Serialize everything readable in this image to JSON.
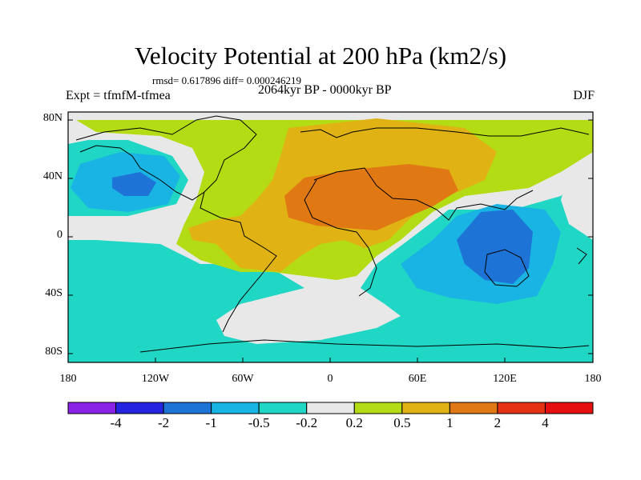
{
  "title": "Velocity Potential at 200 hPa (km2/s)",
  "stats": "rmsd= 0.617896  diff= 0.000246219",
  "experiment": "Expt = tfmfM-tfmea",
  "period": "2064kyr BP - 0000kyr BP",
  "season": "DJF",
  "lat_labels": [
    "80N",
    "40N",
    "0",
    "40S",
    "80S"
  ],
  "lon_labels": [
    "180",
    "120W",
    "60W",
    "0",
    "60E",
    "120E",
    "180"
  ],
  "colorbar": {
    "labels": [
      "-4",
      "-2",
      "-1",
      "-0.5",
      "-0.2",
      "0.2",
      "0.5",
      "1",
      "2",
      "4"
    ],
    "colors": [
      "#8a23e6",
      "#2323e0",
      "#1e73d6",
      "#19b4e3",
      "#20d6c5",
      "#e8e8e8",
      "#b4dc14",
      "#e0b214",
      "#e07814",
      "#e63214",
      "#e60f0f"
    ]
  },
  "colors": {
    "background_field": "#20d6c5",
    "neutral": "#e8e8e8",
    "weak_positive": "#b4dc14",
    "moderate_positive": "#e0b214",
    "strong_positive": "#e07814",
    "weak_negative": "#19b4e3",
    "moderate_negative": "#1e73d6"
  }
}
